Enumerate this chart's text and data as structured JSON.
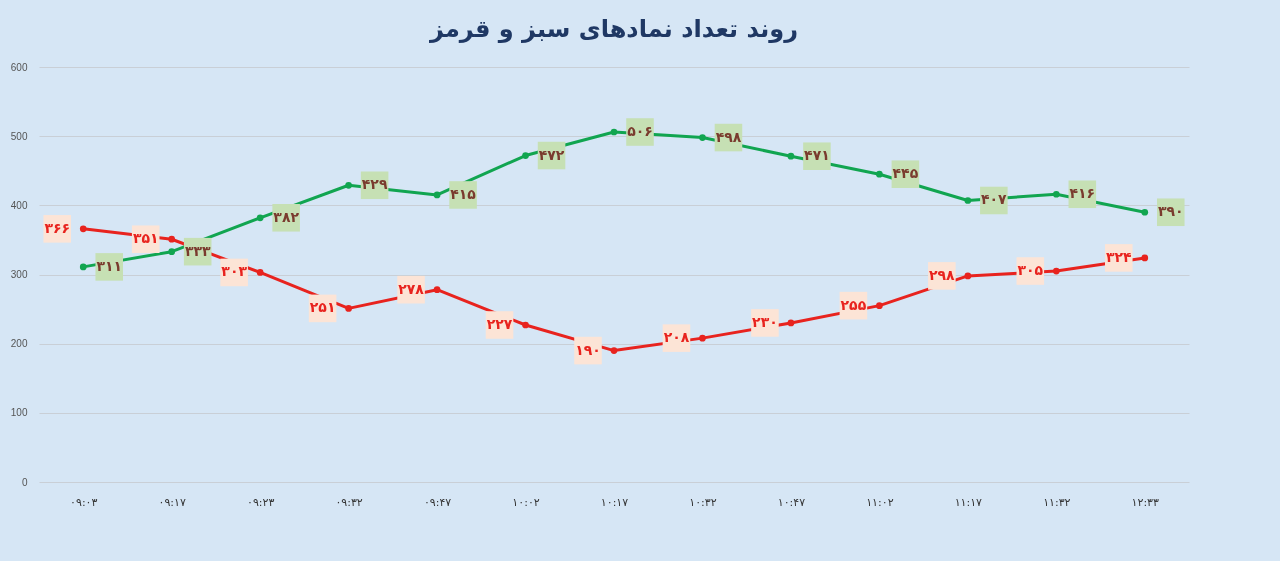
{
  "chart_data": {
    "type": "line",
    "title": "روند تعداد نمادهای سبز و قرمز",
    "categories": [
      "۰۹:۰۳",
      "۰۹:۱۷",
      "۰۹:۲۳",
      "۰۹:۳۲",
      "۰۹:۴۷",
      "۱۰:۰۲",
      "۱۰:۱۷",
      "۱۰:۳۲",
      "۱۰:۴۷",
      "۱۱:۰۲",
      "۱۱:۱۷",
      "۱۱:۳۲",
      "۱۲:۳۳"
    ],
    "series": [
      {
        "color": "#11a550",
        "values": [
          311,
          333,
          382,
          429,
          415,
          472,
          506,
          498,
          471,
          445,
          407,
          416,
          390
        ],
        "value_labels": [
          "۳۱۱",
          "۳۳۳",
          "۳۸۲",
          "۴۲۹",
          "۴۱۵",
          "۴۷۲",
          "۵۰۶",
          "۴۹۸",
          "۴۷۱",
          "۴۴۵",
          "۴۰۷",
          "۴۱۶",
          "۳۹۰"
        ]
      },
      {
        "color": "#e8231e",
        "values": [
          366,
          351,
          303,
          251,
          278,
          227,
          190,
          208,
          230,
          255,
          298,
          305,
          324
        ],
        "value_labels": [
          "۳۶۶",
          "۳۵۱",
          "۳۰۳",
          "۲۵۱",
          "۲۷۸",
          "۲۲۷",
          "۱۹۰",
          "۲۰۸",
          "۲۳۰",
          "۲۵۵",
          "۲۹۸",
          "۳۰۵",
          "۳۲۴"
        ]
      }
    ],
    "ylim": [
      0,
      600
    ],
    "yticks": [
      0,
      100,
      200,
      300,
      400,
      500,
      600
    ],
    "grid": "y",
    "marker": "circle",
    "line_style": "solid"
  }
}
